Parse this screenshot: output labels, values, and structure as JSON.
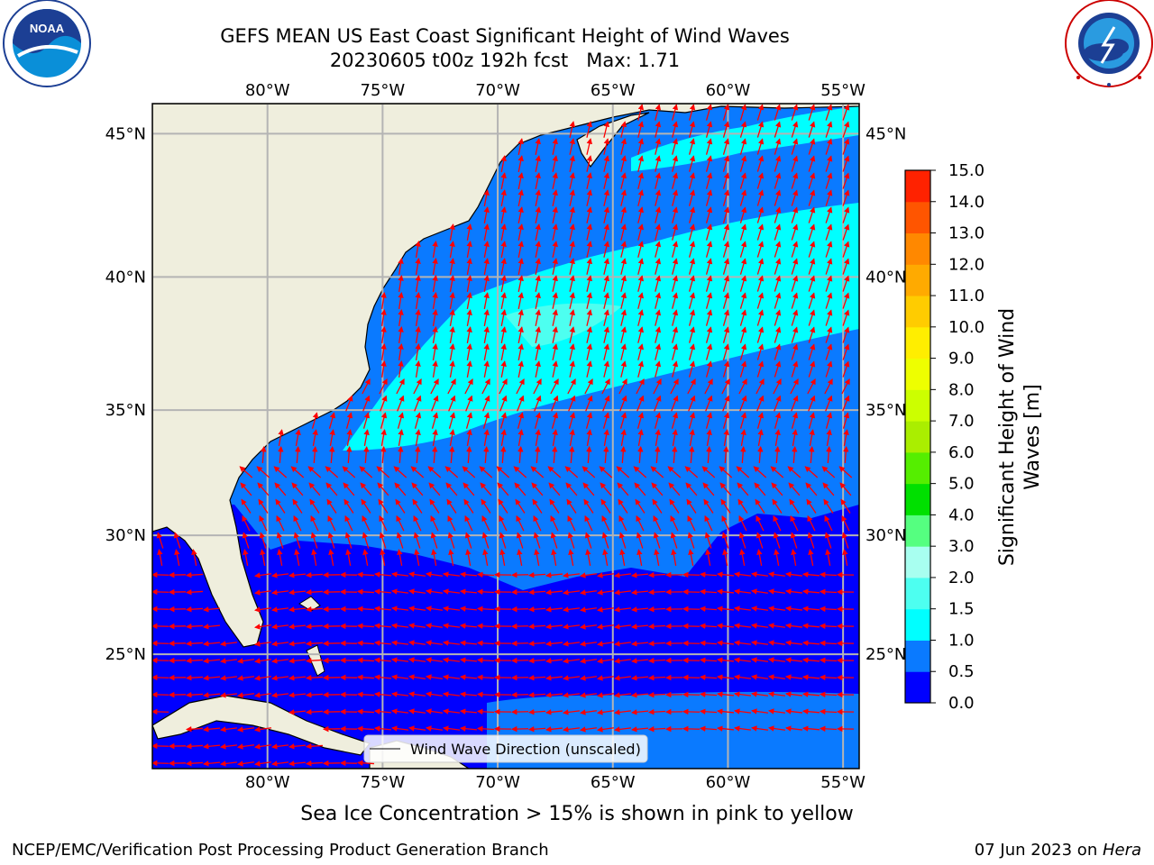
{
  "title": {
    "line1": "GEFS MEAN US East Coast Significant Height of Wind Waves",
    "line2": "20230605 t00z 192h fcst   Max: 1.71"
  },
  "logos": {
    "left": {
      "icon": "noaa-logo-icon",
      "text": "NOAA",
      "ring_text": "NATIONAL OCEANIC AND ATMOSPHERIC ADMINISTRATION · U.S. DEPARTMENT OF COMMERCE"
    },
    "right": {
      "icon": "nws-logo-icon",
      "ring_text": "NATIONAL WEATHER SERVICE"
    }
  },
  "map": {
    "lon_ticks": [
      "80°W",
      "75°W",
      "70°W",
      "65°W",
      "60°W",
      "55°W"
    ],
    "lat_ticks": [
      "45°N",
      "40°N",
      "35°N",
      "30°N",
      "25°N"
    ],
    "lon_range": [
      -85,
      -54.3
    ],
    "lat_range": [
      20,
      46
    ],
    "legend_label": "Wind Wave Direction (unscaled)",
    "land_color": "#efeedd",
    "arrow_color": "#ff0000"
  },
  "colorbar": {
    "label_line1": "Significant Height of Wind",
    "label_line2": "Waves [m]",
    "ticks": [
      "0.0",
      "0.5",
      "1.0",
      "1.5",
      "2.0",
      "3.0",
      "4.0",
      "5.0",
      "6.0",
      "7.0",
      "8.0",
      "9.0",
      "10.0",
      "11.0",
      "12.0",
      "13.0",
      "14.0",
      "15.0"
    ],
    "colors": [
      "#0000ff",
      "#0a7aff",
      "#00ffff",
      "#4dfff0",
      "#a8fff0",
      "#55ff80",
      "#00e000",
      "#55ee00",
      "#aaee00",
      "#ccff00",
      "#eeff00",
      "#ffee00",
      "#ffcc00",
      "#ffaa00",
      "#ff8800",
      "#ff5500",
      "#ff2200"
    ]
  },
  "subnote": "Sea Ice Concentration > 15% is shown in pink to yellow",
  "footer": {
    "left": "NCEP/EMC/Verification Post Processing Product Generation Branch",
    "right_prefix": "07 Jun 2023 on ",
    "right_host": "Hera"
  }
}
